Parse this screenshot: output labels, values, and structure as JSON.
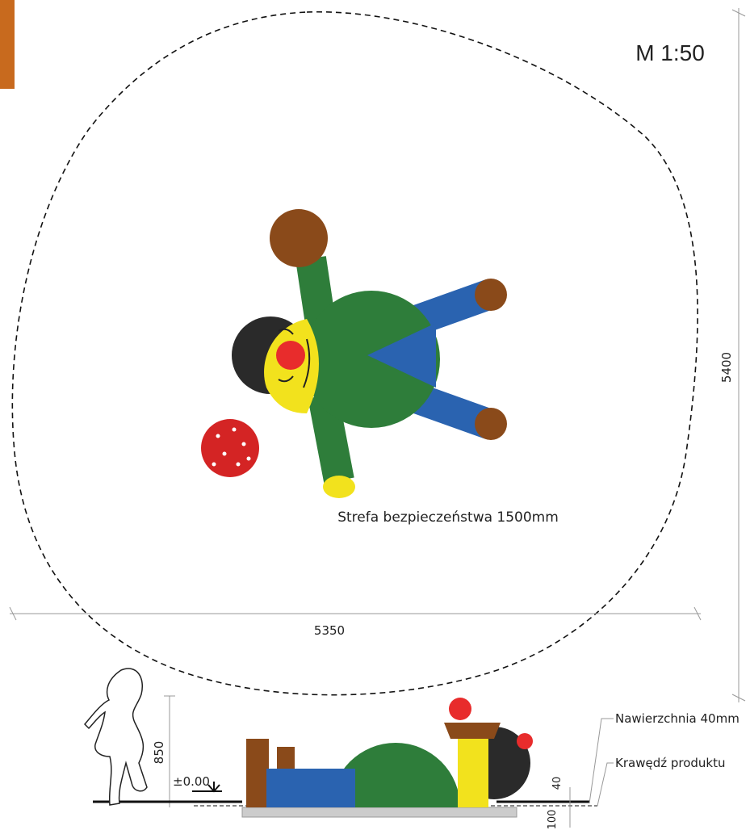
{
  "scale": "M 1:50",
  "dimensions": {
    "depth": "5400",
    "width": "5350",
    "height": "850",
    "level": "±0.00",
    "surface": "40",
    "foundation": "100"
  },
  "labels": {
    "safety_zone": "Strefa bezpieczeństwa 1500mm",
    "surface": "Nawierzchnia 40mm",
    "edge": "Krawędź produktu"
  }
}
